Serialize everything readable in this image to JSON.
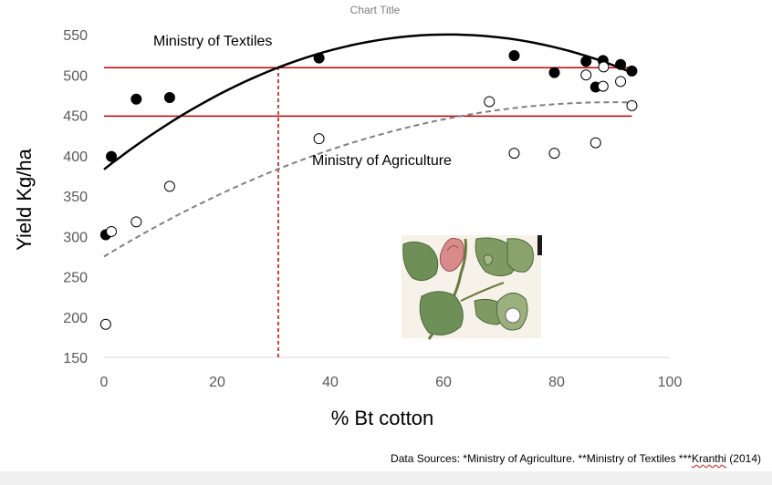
{
  "chart_data": {
    "type": "scatter",
    "title": "Chart Title",
    "xlabel": "% Bt cotton",
    "ylabel": "Yield Kg/ha",
    "xlim": [
      0,
      100
    ],
    "ylim": [
      150,
      550
    ],
    "xticks": [
      0,
      20,
      40,
      60,
      80,
      100
    ],
    "yticks": [
      150,
      200,
      250,
      300,
      350,
      400,
      450,
      500,
      550
    ],
    "grid": false,
    "series": [
      {
        "name": "Ministry of Textiles",
        "marker": "filled-circle",
        "color": "#000000",
        "points": [
          [
            0.3,
            302
          ],
          [
            1.3,
            399
          ],
          [
            5.7,
            470
          ],
          [
            11.6,
            472
          ],
          [
            38,
            521
          ],
          [
            72.5,
            524
          ],
          [
            79.6,
            503
          ],
          [
            85.2,
            517
          ],
          [
            86.9,
            485
          ],
          [
            88.2,
            518
          ],
          [
            91.3,
            513
          ],
          [
            93.3,
            505
          ]
        ]
      },
      {
        "name": "Ministry of Agriculture",
        "marker": "open-circle",
        "color": "#000000",
        "points": [
          [
            0.3,
            191
          ],
          [
            1.3,
            306
          ],
          [
            5.7,
            318
          ],
          [
            11.6,
            362
          ],
          [
            38,
            421
          ],
          [
            68.1,
            467
          ],
          [
            72.5,
            403
          ],
          [
            79.6,
            403
          ],
          [
            85.2,
            500
          ],
          [
            86.9,
            416
          ],
          [
            88.2,
            486
          ],
          [
            88.3,
            510
          ],
          [
            91.3,
            492
          ],
          [
            93.3,
            462
          ]
        ]
      }
    ],
    "trendlines": [
      {
        "series": "Ministry of Textiles",
        "type": "polynomial-2",
        "style": "solid",
        "color": "#000000",
        "x_range": [
          0,
          93.3
        ],
        "points": [
          [
            0,
            383
          ],
          [
            31,
            510
          ],
          [
            59,
            550
          ],
          [
            93.3,
            503
          ]
        ]
      },
      {
        "series": "Ministry of Agriculture",
        "type": "polynomial-2",
        "style": "dashed",
        "color": "#808080",
        "x_range": [
          0,
          93.3
        ],
        "points": [
          [
            0,
            275
          ],
          [
            30,
            380
          ],
          [
            60,
            445
          ],
          [
            93.3,
            466
          ]
        ]
      }
    ],
    "reference_lines": [
      {
        "orientation": "horizontal",
        "y": 509,
        "x_range": [
          0,
          93.3
        ],
        "color": "#c00000",
        "style": "solid"
      },
      {
        "orientation": "horizontal",
        "y": 449,
        "x_range": [
          0,
          93.3
        ],
        "color": "#c00000",
        "style": "solid"
      },
      {
        "orientation": "vertical",
        "x": 30.8,
        "y_range": [
          150,
          509
        ],
        "color": "#c00000",
        "style": "dashed"
      }
    ],
    "annotations": {
      "textiles": "Ministry of Textiles",
      "agriculture": "Ministry of Agriculture"
    }
  },
  "footer": {
    "source_prefix": "Data Sources: *Ministry of Agriculture. **Ministry of Textiles ***",
    "source_author": "Kranthi",
    "source_suffix": " (2014)"
  },
  "image": {
    "description": "botanical-illustration-cotton-plant"
  }
}
